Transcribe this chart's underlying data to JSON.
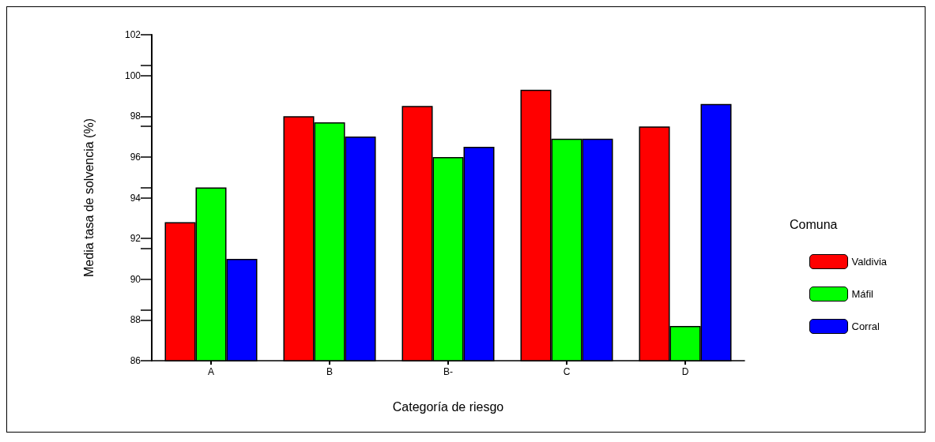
{
  "chart_data": {
    "type": "bar",
    "xlabel": "Categoría de riesgo",
    "ylabel": "Media tasa de solvencia (%)",
    "legend_title": "Comuna",
    "categories": [
      "A",
      "B",
      "B-",
      "C",
      "D"
    ],
    "series": [
      {
        "name": "Valdivia",
        "color": "#ff0000",
        "values": [
          92.8,
          98.0,
          98.5,
          99.3,
          97.5
        ]
      },
      {
        "name": "Máfil",
        "color": "#00ff00",
        "values": [
          94.5,
          97.7,
          96.0,
          96.9,
          87.7
        ]
      },
      {
        "name": "Corral",
        "color": "#0000ff",
        "values": [
          91.0,
          97.0,
          96.5,
          96.9,
          98.6
        ]
      }
    ],
    "ylim": [
      86,
      102
    ],
    "yticks": [
      86,
      88,
      90,
      92,
      94,
      96,
      98,
      100,
      102
    ],
    "grid": false,
    "legend": "right"
  }
}
